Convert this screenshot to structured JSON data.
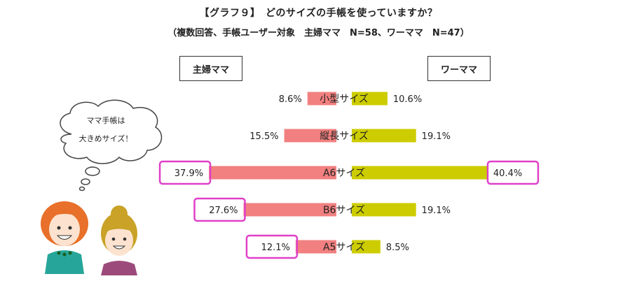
{
  "header": {
    "title": "【グラフ９】　どのサイズの手帳を使っていますか？",
    "subtitle": "（複数回答、手帳ユーザー対象　主婦ママ　N=58、ワーママ　N=47）"
  },
  "legend": {
    "left": "主婦ママ",
    "right": "ワーママ"
  },
  "bubble": {
    "line1": "ママ手帳は",
    "line2": "大きめサイズ！"
  },
  "colors": {
    "left_series": "#f28080",
    "right_series": "#cccc00",
    "highlight": "#e040c8"
  },
  "chart_data": {
    "type": "bar",
    "orientation": "horizontal-diverging",
    "categories": [
      "小型サイズ",
      "縦長サイズ",
      "A6サイズ",
      "B6サイズ",
      "A5サイズ"
    ],
    "series": [
      {
        "name": "主婦ママ",
        "values": [
          8.6,
          15.5,
          37.9,
          27.6,
          12.1
        ],
        "labels": [
          "8.6%",
          "15.5%",
          "37.9%",
          "27.6%",
          "12.1%"
        ]
      },
      {
        "name": "ワーママ",
        "values": [
          10.6,
          19.1,
          40.4,
          19.1,
          8.5
        ],
        "labels": [
          "10.6%",
          "19.1%",
          "40.4%",
          "19.1%",
          "8.5%"
        ]
      }
    ],
    "highlighted": {
      "主婦ママ": [
        2,
        3,
        4
      ],
      "ワーママ": [
        2
      ]
    },
    "unit": "%"
  }
}
